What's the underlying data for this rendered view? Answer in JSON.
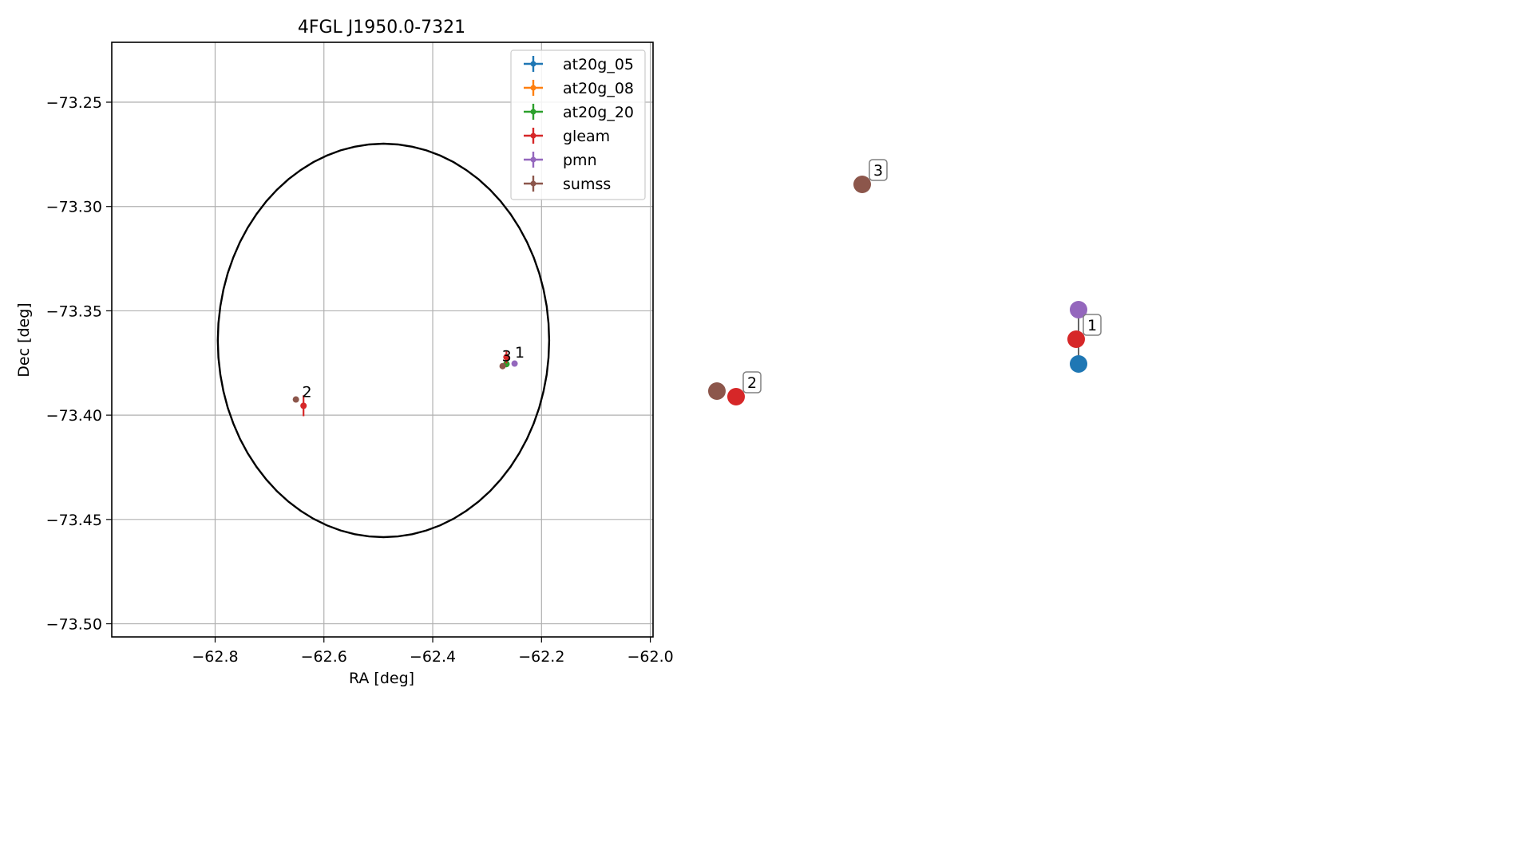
{
  "chart_data": [
    {
      "type": "scatter",
      "title": "4FGL J1950.0-7321",
      "xlabel": "RA [deg]",
      "ylabel": "Dec [deg]",
      "xlim": [
        -62.99,
        -61.995
      ],
      "ylim": [
        -73.5063,
        -73.2213
      ],
      "xticks": [
        -62.8,
        -62.6,
        -62.4,
        -62.2,
        -62.0
      ],
      "xtick_labels": [
        "−62.8",
        "−62.6",
        "−62.4",
        "−62.2",
        "−62.0"
      ],
      "yticks": [
        -73.25,
        -73.3,
        -73.35,
        -73.4,
        -73.45,
        -73.5
      ],
      "ytick_labels": [
        "−73.25",
        "−73.30",
        "−73.35",
        "−73.40",
        "−73.45",
        "−73.50"
      ],
      "grid": true,
      "legend_position": "top-right",
      "ellipse": {
        "center_ra": -62.4905,
        "center_dec": -73.3642,
        "semi_axis_ra": 0.3046,
        "semi_axis_dec": 0.0943,
        "color": "#000000"
      },
      "series": [
        {
          "name": "at20g_05",
          "color": "#1f77b4",
          "points": [
            {
              "ra": -62.2645,
              "dec": -73.3755,
              "err_ra": 0.0,
              "err_dec": 0.0
            }
          ]
        },
        {
          "name": "at20g_08",
          "color": "#ff7f0e",
          "points": [
            {
              "ra": -62.2645,
              "dec": -73.3755,
              "err_ra": 0.0,
              "err_dec": 0.0
            }
          ]
        },
        {
          "name": "at20g_20",
          "color": "#2ca02c",
          "points": [
            {
              "ra": -62.2645,
              "dec": -73.3755,
              "err_ra": 0.0,
              "err_dec": 0.0
            }
          ]
        },
        {
          "name": "gleam",
          "color": "#d62728",
          "points": [
            {
              "ra": -62.2645,
              "dec": -73.3722,
              "err_ra": 0.0,
              "err_dec": 0.003
            },
            {
              "ra": -62.6375,
              "dec": -73.3955,
              "err_ra": 0.0,
              "err_dec": 0.005
            }
          ]
        },
        {
          "name": "pmn",
          "color": "#9467bd",
          "points": [
            {
              "ra": -62.2495,
              "dec": -73.3753,
              "err_ra": 0.0,
              "err_dec": 0.0
            }
          ]
        },
        {
          "name": "sumss",
          "color": "#8c564b",
          "points": [
            {
              "ra": -62.2715,
              "dec": -73.3765,
              "err_ra": 0.0,
              "err_dec": 0.0
            },
            {
              "ra": -62.6515,
              "dec": -73.3925,
              "err_ra": 0.0,
              "err_dec": 0.0
            }
          ]
        }
      ],
      "annotations": [
        {
          "text": "1",
          "ra": -62.2475,
          "dec": -73.3697
        },
        {
          "text": "2",
          "ra": -62.6385,
          "dec": -73.3887
        },
        {
          "text": "3",
          "ra": -62.2715,
          "dec": -73.3714
        }
      ]
    },
    {
      "type": "scatter",
      "description_free": true,
      "nodes": [
        {
          "label": "3",
          "color": "#8c564b",
          "px": [
            1080,
            231
          ],
          "labeled": true
        },
        {
          "label": "",
          "color": "#9467bd",
          "px": [
            1351,
            388
          ],
          "labeled": false
        },
        {
          "label": "1",
          "color": "#d62728",
          "px": [
            1348,
            425
          ],
          "labeled": true
        },
        {
          "label": "",
          "color": "#1f77b4",
          "px": [
            1351,
            456
          ],
          "labeled": false
        },
        {
          "label": "",
          "color": "#8c564b",
          "px": [
            898,
            490
          ],
          "labeled": false
        },
        {
          "label": "2",
          "color": "#d62728",
          "px": [
            922,
            497
          ],
          "labeled": true
        }
      ]
    }
  ]
}
